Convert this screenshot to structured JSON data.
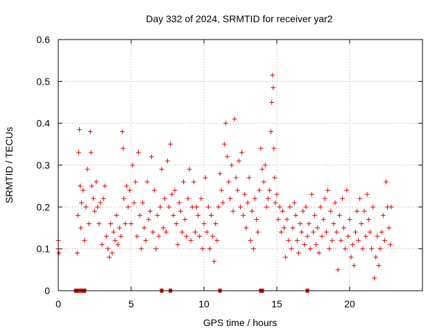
{
  "chart_data": {
    "type": "scatter",
    "title": "Day 332 of 2024, SRMTID for receiver yar2",
    "xlabel": "GPS time / hours",
    "ylabel": "SRMTID / TECUs",
    "xlim": [
      0,
      25
    ],
    "ylim": [
      0,
      0.6
    ],
    "xticks": [
      0,
      5,
      10,
      15,
      20
    ],
    "xtick_labels": [
      "0",
      "5",
      "10",
      "15",
      "20"
    ],
    "yticks": [
      0,
      0.1,
      0.2,
      0.3,
      0.4,
      0.5,
      0.6
    ],
    "ytick_labels": [
      "0",
      "0.1",
      "0.2",
      "0.3",
      "0.4",
      "0.5",
      "0.6"
    ],
    "grid": true,
    "marker": "plus",
    "color": "#e00000",
    "series": [
      {
        "name": "SRMTID",
        "points": [
          [
            0.0,
            0.12
          ],
          [
            0.0,
            0.1
          ],
          [
            0.05,
            0.09
          ],
          [
            1.3,
            0.09
          ],
          [
            1.35,
            0.18
          ],
          [
            1.4,
            0.33
          ],
          [
            1.45,
            0.385
          ],
          [
            1.5,
            0.25
          ],
          [
            1.55,
            0.15
          ],
          [
            1.6,
            0.21
          ],
          [
            1.7,
            0.24
          ],
          [
            1.8,
            0.12
          ],
          [
            1.9,
            0.2
          ],
          [
            2.0,
            0.29
          ],
          [
            2.1,
            0.16
          ],
          [
            2.2,
            0.38
          ],
          [
            2.25,
            0.33
          ],
          [
            2.3,
            0.25
          ],
          [
            2.4,
            0.22
          ],
          [
            2.5,
            0.19
          ],
          [
            2.6,
            0.26
          ],
          [
            2.7,
            0.2
          ],
          [
            2.8,
            0.16
          ],
          [
            2.9,
            0.21
          ],
          [
            3.0,
            0.11
          ],
          [
            3.1,
            0.22
          ],
          [
            3.2,
            0.25
          ],
          [
            3.3,
            0.13
          ],
          [
            3.4,
            0.1
          ],
          [
            3.5,
            0.08
          ],
          [
            3.6,
            0.16
          ],
          [
            3.7,
            0.09
          ],
          [
            3.8,
            0.14
          ],
          [
            3.9,
            0.12
          ],
          [
            4.0,
            0.18
          ],
          [
            4.1,
            0.11
          ],
          [
            4.2,
            0.15
          ],
          [
            4.3,
            0.13
          ],
          [
            4.4,
            0.38
          ],
          [
            4.45,
            0.34
          ],
          [
            4.5,
            0.22
          ],
          [
            4.6,
            0.16
          ],
          [
            4.7,
            0.25
          ],
          [
            4.8,
            0.2
          ],
          [
            4.9,
            0.24
          ],
          [
            5.0,
            0.16
          ],
          [
            5.1,
            0.3
          ],
          [
            5.2,
            0.21
          ],
          [
            5.3,
            0.26
          ],
          [
            5.4,
            0.13
          ],
          [
            5.5,
            0.33
          ],
          [
            5.6,
            0.18
          ],
          [
            5.7,
            0.1
          ],
          [
            5.8,
            0.21
          ],
          [
            5.9,
            0.15
          ],
          [
            6.0,
            0.12
          ],
          [
            6.1,
            0.26
          ],
          [
            6.2,
            0.17
          ],
          [
            6.3,
            0.19
          ],
          [
            6.4,
            0.32
          ],
          [
            6.5,
            0.14
          ],
          [
            6.6,
            0.24
          ],
          [
            6.7,
            0.1
          ],
          [
            6.8,
            0.18
          ],
          [
            6.9,
            0.13
          ],
          [
            7.0,
            0.2
          ],
          [
            7.1,
            0.29
          ],
          [
            7.2,
            0.15
          ],
          [
            7.3,
            0.22
          ],
          [
            7.4,
            0.14
          ],
          [
            7.5,
            0.31
          ],
          [
            7.6,
            0.2
          ],
          [
            7.7,
            0.35
          ],
          [
            7.8,
            0.23
          ],
          [
            7.9,
            0.18
          ],
          [
            8.0,
            0.24
          ],
          [
            8.1,
            0.16
          ],
          [
            8.2,
            0.11
          ],
          [
            8.3,
            0.21
          ],
          [
            8.4,
            0.19
          ],
          [
            8.5,
            0.14
          ],
          [
            8.6,
            0.26
          ],
          [
            8.7,
            0.17
          ],
          [
            8.8,
            0.13
          ],
          [
            8.9,
            0.22
          ],
          [
            9.0,
            0.29
          ],
          [
            9.1,
            0.12
          ],
          [
            9.2,
            0.2
          ],
          [
            9.3,
            0.26
          ],
          [
            9.4,
            0.14
          ],
          [
            9.5,
            0.2
          ],
          [
            9.6,
            0.18
          ],
          [
            9.7,
            0.13
          ],
          [
            9.8,
            0.22
          ],
          [
            9.9,
            0.1
          ],
          [
            10.0,
            0.16
          ],
          [
            10.1,
            0.27
          ],
          [
            10.2,
            0.14
          ],
          [
            10.3,
            0.2
          ],
          [
            10.4,
            0.1
          ],
          [
            10.5,
            0.18
          ],
          [
            10.6,
            0.13
          ],
          [
            10.7,
            0.07
          ],
          [
            10.8,
            0.16
          ],
          [
            10.9,
            0.12
          ],
          [
            11.0,
            0.2
          ],
          [
            11.1,
            0.28
          ],
          [
            11.2,
            0.24
          ],
          [
            11.3,
            0.21
          ],
          [
            11.4,
            0.35
          ],
          [
            11.5,
            0.4
          ],
          [
            11.6,
            0.32
          ],
          [
            11.7,
            0.26
          ],
          [
            11.8,
            0.22
          ],
          [
            11.9,
            0.3
          ],
          [
            12.0,
            0.19
          ],
          [
            12.1,
            0.41
          ],
          [
            12.2,
            0.27
          ],
          [
            12.3,
            0.24
          ],
          [
            12.4,
            0.31
          ],
          [
            12.5,
            0.2
          ],
          [
            12.6,
            0.33
          ],
          [
            12.7,
            0.18
          ],
          [
            12.8,
            0.23
          ],
          [
            12.9,
            0.15
          ],
          [
            13.0,
            0.21
          ],
          [
            13.1,
            0.27
          ],
          [
            13.2,
            0.12
          ],
          [
            13.3,
            0.19
          ],
          [
            13.4,
            0.1
          ],
          [
            13.5,
            0.22
          ],
          [
            13.6,
            0.17
          ],
          [
            13.7,
            0.14
          ],
          [
            13.8,
            0.24
          ],
          [
            13.9,
            0.34
          ],
          [
            14.0,
            0.29
          ],
          [
            14.1,
            0.26
          ],
          [
            14.2,
            0.3
          ],
          [
            14.3,
            0.2
          ],
          [
            14.4,
            0.22
          ],
          [
            14.5,
            0.24
          ],
          [
            14.6,
            0.38
          ],
          [
            14.65,
            0.45
          ],
          [
            14.7,
            0.515
          ],
          [
            14.75,
            0.485
          ],
          [
            14.8,
            0.34
          ],
          [
            14.85,
            0.27
          ],
          [
            14.9,
            0.21
          ],
          [
            15.0,
            0.23
          ],
          [
            15.1,
            0.17
          ],
          [
            15.2,
            0.2
          ],
          [
            15.3,
            0.14
          ],
          [
            15.4,
            0.19
          ],
          [
            15.5,
            0.15
          ],
          [
            15.6,
            0.08
          ],
          [
            15.7,
            0.17
          ],
          [
            15.8,
            0.12
          ],
          [
            15.9,
            0.2
          ],
          [
            16.0,
            0.1
          ],
          [
            16.1,
            0.15
          ],
          [
            16.2,
            0.21
          ],
          [
            16.3,
            0.18
          ],
          [
            16.4,
            0.12
          ],
          [
            16.5,
            0.09
          ],
          [
            16.6,
            0.16
          ],
          [
            16.7,
            0.14
          ],
          [
            16.8,
            0.19
          ],
          [
            16.9,
            0.11
          ],
          [
            17.0,
            0.2
          ],
          [
            17.1,
            0.13
          ],
          [
            17.2,
            0.16
          ],
          [
            17.3,
            0.1
          ],
          [
            17.4,
            0.23
          ],
          [
            17.5,
            0.14
          ],
          [
            17.6,
            0.18
          ],
          [
            17.7,
            0.11
          ],
          [
            17.8,
            0.15
          ],
          [
            17.9,
            0.09
          ],
          [
            18.0,
            0.2
          ],
          [
            18.1,
            0.13
          ],
          [
            18.2,
            0.17
          ],
          [
            18.3,
            0.22
          ],
          [
            18.4,
            0.14
          ],
          [
            18.5,
            0.24
          ],
          [
            18.6,
            0.1
          ],
          [
            18.7,
            0.19
          ],
          [
            18.8,
            0.12
          ],
          [
            18.9,
            0.16
          ],
          [
            19.0,
            0.21
          ],
          [
            19.1,
            0.14
          ],
          [
            19.2,
            0.05
          ],
          [
            19.3,
            0.18
          ],
          [
            19.4,
            0.12
          ],
          [
            19.5,
            0.22
          ],
          [
            19.6,
            0.15
          ],
          [
            19.7,
            0.1
          ],
          [
            19.8,
            0.24
          ],
          [
            19.9,
            0.13
          ],
          [
            20.0,
            0.17
          ],
          [
            20.1,
            0.08
          ],
          [
            20.2,
            0.11
          ],
          [
            20.3,
            0.06
          ],
          [
            20.4,
            0.14
          ],
          [
            20.5,
            0.19
          ],
          [
            20.6,
            0.12
          ],
          [
            20.7,
            0.22
          ],
          [
            20.8,
            0.16
          ],
          [
            20.9,
            0.1
          ],
          [
            21.0,
            0.19
          ],
          [
            21.1,
            0.13
          ],
          [
            21.2,
            0.23
          ],
          [
            21.3,
            0.17
          ],
          [
            21.4,
            0.14
          ],
          [
            21.5,
            0.1
          ],
          [
            21.6,
            0.2
          ],
          [
            21.7,
            0.03
          ],
          [
            21.8,
            0.08
          ],
          [
            21.9,
            0.13
          ],
          [
            22.0,
            0.06
          ],
          [
            22.1,
            0.1
          ],
          [
            22.2,
            0.14
          ],
          [
            22.3,
            0.18
          ],
          [
            22.4,
            0.12
          ],
          [
            22.5,
            0.26
          ],
          [
            22.6,
            0.2
          ],
          [
            22.7,
            0.15
          ],
          [
            22.8,
            0.11
          ],
          [
            22.85,
            0.2
          ]
        ]
      }
    ],
    "zero_markers_x": [
      1.2,
      1.4,
      1.6,
      1.8,
      7.1,
      7.7,
      11.1,
      13.9,
      14.0,
      17.1
    ]
  }
}
